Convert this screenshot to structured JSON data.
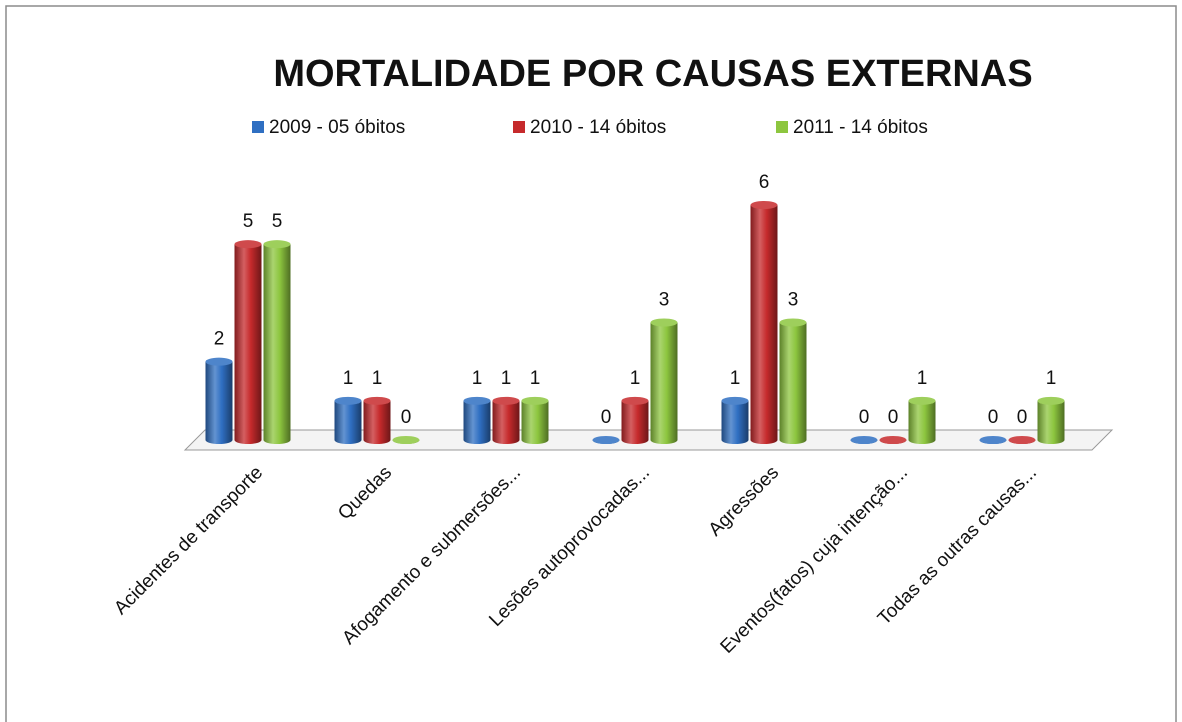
{
  "chart_data": {
    "type": "bar3d",
    "title": "MORTALIDADE POR CAUSAS EXTERNAS",
    "categories": [
      "Acidentes de transporte",
      "Quedas",
      "Afogamento e submersões...",
      "Lesões autoprovocadas...",
      "Agressões",
      "Eventos(fatos) cuja intenção...",
      "Todas as outras causas..."
    ],
    "series": [
      {
        "name": "2009 - 05 óbitos",
        "color": "#2f6fc2",
        "values": [
          2,
          1,
          1,
          0,
          1,
          0,
          0
        ]
      },
      {
        "name": "2010 - 14 óbitos",
        "color": "#c62a2c",
        "values": [
          5,
          1,
          1,
          1,
          6,
          0,
          0
        ]
      },
      {
        "name": "2011 - 14 óbitos",
        "color": "#8dc63f",
        "values": [
          5,
          0,
          1,
          3,
          3,
          1,
          1
        ]
      }
    ],
    "legend": "top"
  }
}
